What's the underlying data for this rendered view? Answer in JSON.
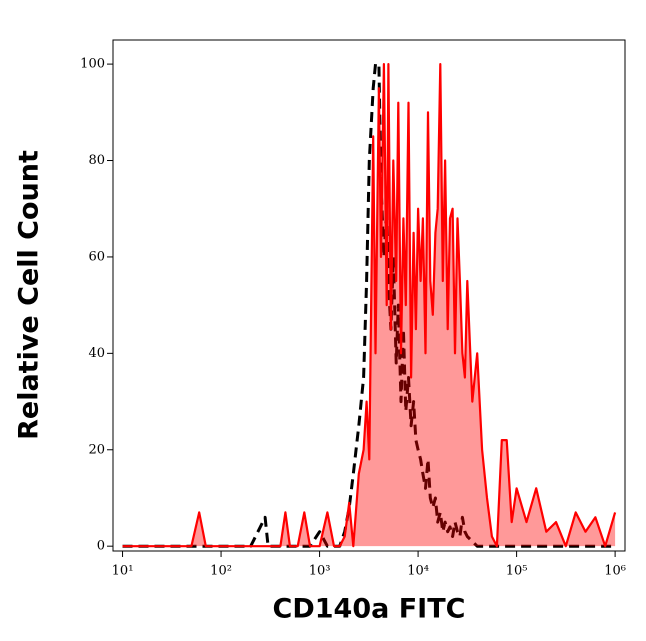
{
  "chart_data": {
    "type": "histogram-overlay",
    "xlabel": "CD140a FITC",
    "ylabel": "Relative Cell Count",
    "xscale": "log",
    "xlim": [
      8,
      1260000
    ],
    "xticks": [
      {
        "value": 10,
        "label": "10¹"
      },
      {
        "value": 100,
        "label": "10²"
      },
      {
        "value": 1000,
        "label": "10³"
      },
      {
        "value": 10000,
        "label": "10⁴"
      },
      {
        "value": 100000,
        "label": "10⁵"
      },
      {
        "value": 1000000,
        "label": "10⁶"
      }
    ],
    "ylim": [
      -1,
      105
    ],
    "yticks": [
      0,
      20,
      40,
      60,
      80,
      100
    ],
    "x": [
      10,
      20,
      50,
      60,
      70,
      100,
      200,
      280,
      300,
      400,
      450,
      500,
      600,
      700,
      800,
      1000,
      1200,
      1400,
      1600,
      1800,
      2000,
      2200,
      2500,
      2800,
      3000,
      3200,
      3500,
      3700,
      4000,
      4200,
      4500,
      4800,
      5000,
      5300,
      5600,
      6000,
      6300,
      6700,
      7100,
      7500,
      8000,
      8500,
      9000,
      9500,
      10000,
      10600,
      11200,
      11900,
      12600,
      13300,
      14100,
      15000,
      15800,
      16800,
      17800,
      18800,
      20000,
      21100,
      22400,
      23700,
      25100,
      26600,
      28200,
      29900,
      31600,
      35500,
      39800,
      44700,
      50100,
      56200,
      63100,
      70800,
      79400,
      89100,
      100000,
      126000,
      158000,
      200000,
      251000,
      316000,
      398000,
      501000,
      631000,
      794000,
      1000000
    ],
    "series": [
      {
        "color": "#000000",
        "style": "dashed",
        "values": [
          0,
          0,
          0,
          0,
          0,
          0,
          0,
          6,
          0,
          0,
          0,
          0,
          0,
          0,
          0,
          3,
          0,
          0,
          0,
          3,
          8,
          15,
          25,
          35,
          55,
          80,
          95,
          100,
          100,
          75,
          60,
          70,
          55,
          45,
          60,
          38,
          50,
          30,
          45,
          28,
          35,
          25,
          30,
          22,
          20,
          18,
          15,
          12,
          18,
          10,
          8,
          10,
          5,
          7,
          3,
          5,
          3,
          4,
          2,
          5,
          3,
          2,
          6,
          3,
          2,
          1,
          0,
          0,
          0,
          0,
          0,
          0,
          0,
          0,
          0,
          0,
          0,
          0,
          0,
          0,
          0,
          0,
          0,
          0,
          0
        ]
      },
      {
        "color": "#ff0000",
        "fill": "#ff0000",
        "style": "solid",
        "values": [
          0,
          0,
          0,
          7,
          0,
          0,
          0,
          0,
          0,
          0,
          7,
          0,
          0,
          7,
          0,
          0,
          7,
          0,
          0,
          2,
          9,
          0,
          15,
          20,
          30,
          18,
          85,
          40,
          95,
          60,
          100,
          50,
          100,
          45,
          80,
          55,
          92,
          40,
          68,
          50,
          92,
          35,
          65,
          45,
          70,
          55,
          68,
          40,
          90,
          55,
          48,
          65,
          70,
          100,
          55,
          80,
          45,
          68,
          70,
          40,
          68,
          55,
          40,
          35,
          55,
          30,
          40,
          20,
          10,
          2,
          0,
          22,
          22,
          5,
          12,
          5,
          12,
          3,
          5,
          0,
          7,
          3,
          6,
          0,
          7
        ]
      }
    ]
  }
}
